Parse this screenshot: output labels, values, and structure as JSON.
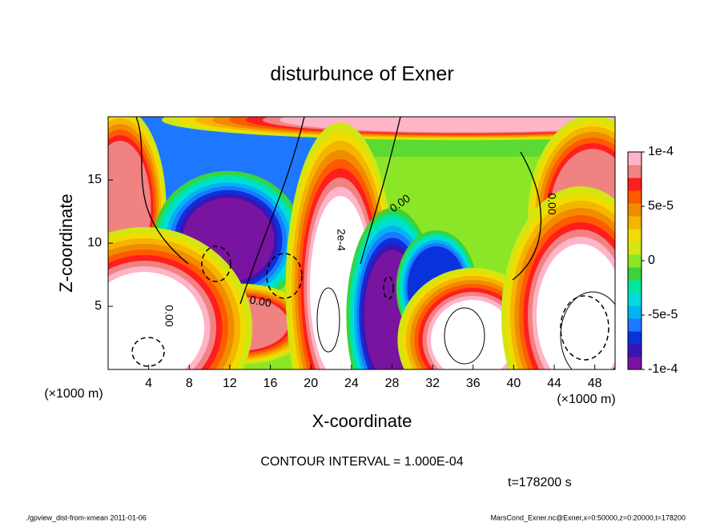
{
  "chart_data": {
    "type": "contour",
    "title": "disturbunce of Exner",
    "xlabel": "X-coordinate",
    "ylabel": "Z-coordinate",
    "xunit": "(×1000 m)",
    "yunit": "(×1000 m)",
    "xlim": [
      0,
      50
    ],
    "xticks": [
      4,
      8,
      12,
      16,
      20,
      24,
      28,
      32,
      36,
      40,
      44,
      48
    ],
    "ylim": [
      0,
      20
    ],
    "yticks": [
      5,
      10,
      15
    ],
    "colorbar_lim": [
      -0.0001,
      0.0001
    ],
    "colorbar_ticks": [
      {
        "value": 0.0001,
        "label": "1e-4"
      },
      {
        "value": 5e-05,
        "label": "5e-5"
      },
      0,
      {
        "value": -5e-05,
        "label": "-5e-5"
      },
      {
        "value": -0.0001,
        "label": "-1e-4"
      }
    ],
    "colorbar_colors": [
      "#7814a0",
      "#3c14b4",
      "#0a32dc",
      "#1e78ff",
      "#00b4f0",
      "#00dcdc",
      "#00e6a0",
      "#3cd23c",
      "#8ce628",
      "#d2e614",
      "#f0dc00",
      "#f5b400",
      "#f08c00",
      "#ff5a00",
      "#ff1e1e",
      "#f08282",
      "#ffb4c8"
    ],
    "contour_labels": [
      "0.00",
      "2e-4",
      "0.00",
      "0.00",
      "0.00"
    ],
    "contour_interval": "CONTOUR INTERVAL = 1.000E-04",
    "time_label": "t=178200 s",
    "footer_left": "./gpview_dist-from-xmean  2011-01-06",
    "footer_right": "MarsCond_Exner.nc@Exner,x=0:50000,z=0:20000,t=178200"
  }
}
